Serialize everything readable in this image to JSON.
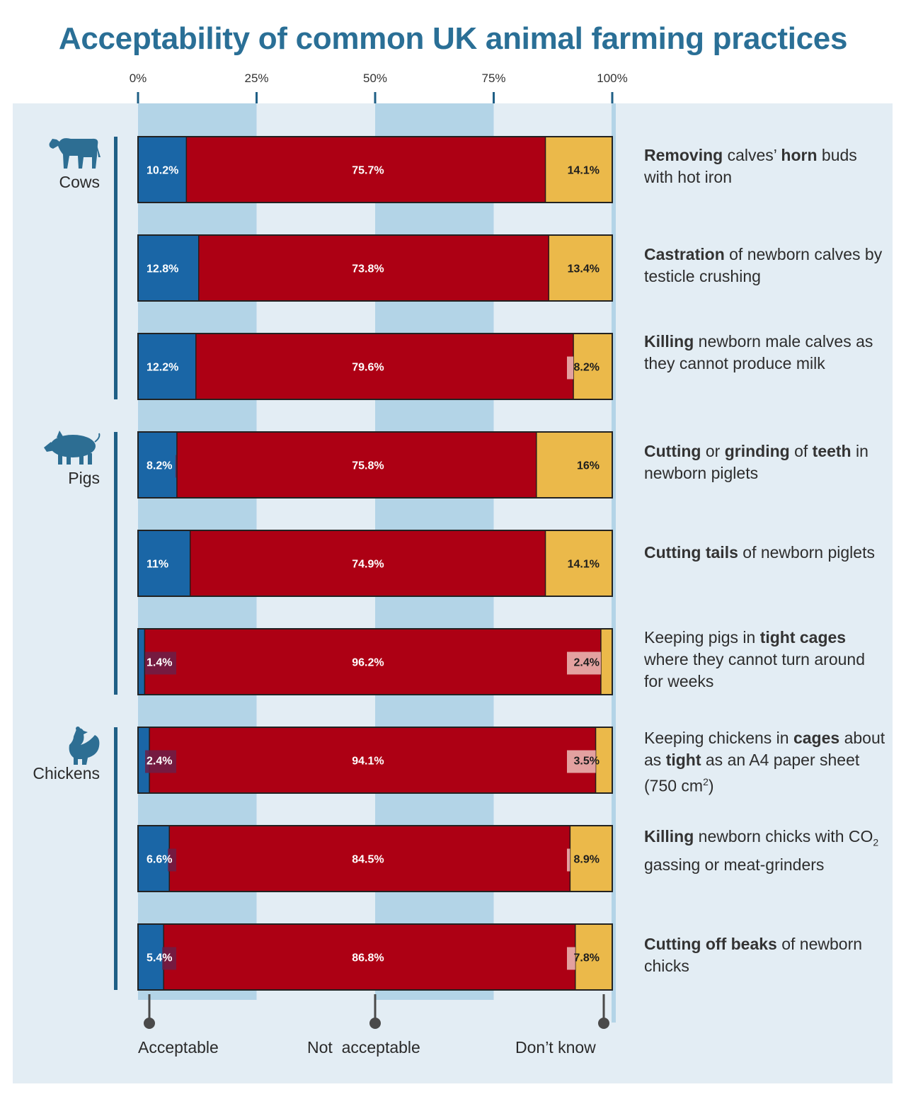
{
  "title": "Acceptability of common UK animal farming practices",
  "colors": {
    "acceptable": "#1a66a6",
    "not_acceptable": "#ad0014",
    "dont_know": "#ebb94a",
    "panel": "#e3edf4",
    "band": "#b3d4e7",
    "title": "#2a6f96",
    "group_line": "#1f5f86",
    "icon": "#2d6e93"
  },
  "groups": [
    {
      "label": "Cows",
      "icon": "cow-icon"
    },
    {
      "label": "Pigs",
      "icon": "pig-icon"
    },
    {
      "label": "Chickens",
      "icon": "chicken-icon"
    }
  ],
  "descriptions": [
    [
      {
        "t": "Removing",
        "b": true
      },
      {
        "t": " calves’ "
      },
      {
        "t": "horn",
        "b": true
      },
      {
        "t": " buds with hot iron"
      }
    ],
    [
      {
        "t": "Castration",
        "b": true
      },
      {
        "t": " of newborn calves by testicle crushing"
      }
    ],
    [
      {
        "t": "Killing",
        "b": true
      },
      {
        "t": " newborn male calves as they cannot produce milk"
      }
    ],
    [
      {
        "t": "Cutting",
        "b": true
      },
      {
        "t": " or "
      },
      {
        "t": "grinding",
        "b": true
      },
      {
        "t": " of "
      },
      {
        "t": "teeth",
        "b": true
      },
      {
        "t": " in newborn piglets"
      }
    ],
    [
      {
        "t": "Cutting tails",
        "b": true
      },
      {
        "t": " of newborn piglets"
      }
    ],
    [
      {
        "t": "Keeping pigs in "
      },
      {
        "t": "tight cages",
        "b": true
      },
      {
        "t": " where they cannot turn around for weeks"
      }
    ],
    [
      {
        "t": "Keeping chickens in "
      },
      {
        "t": "cages",
        "b": true
      },
      {
        "t": " about as "
      },
      {
        "t": "tight",
        "b": true
      },
      {
        "t": " as an A4 paper sheet (750 cm"
      },
      {
        "t": "2",
        "sup": true
      },
      {
        "t": ")"
      }
    ],
    [
      {
        "t": "Killing",
        "b": true
      },
      {
        "t": " newborn chicks with CO"
      },
      {
        "t": "2",
        "sub": true
      },
      {
        "t": " gassing or meat-grinders"
      }
    ],
    [
      {
        "t": "Cutting off beaks",
        "b": true
      },
      {
        "t": " of newborn chicks"
      }
    ]
  ],
  "legend": {
    "acceptable": "Acceptable",
    "not_acceptable": "Not  acceptable",
    "dont_know": "Don’t know"
  },
  "chart_data": {
    "type": "bar",
    "orientation": "horizontal",
    "stacked": true,
    "xlim": [
      0,
      100
    ],
    "x_ticks": [
      "0%",
      "25%",
      "50%",
      "75%",
      "100%"
    ],
    "series": [
      {
        "name": "Acceptable",
        "values": [
          10.2,
          12.8,
          12.2,
          8.2,
          11,
          1.4,
          2.4,
          6.6,
          5.4
        ],
        "labels": [
          "10.2%",
          "12.8%",
          "12.2%",
          "8.2%",
          "11%",
          "1.4%",
          "2.4%",
          "6.6%",
          "5.4%"
        ]
      },
      {
        "name": "Not  acceptable",
        "values": [
          75.7,
          73.8,
          79.6,
          75.8,
          74.9,
          96.2,
          94.1,
          84.5,
          86.8
        ],
        "labels": [
          "75.7%",
          "73.8%",
          "79.6%",
          "75.8%",
          "74.9%",
          "96.2%",
          "94.1%",
          "84.5%",
          "86.8%"
        ]
      },
      {
        "name": "Don’t know",
        "values": [
          14.1,
          13.4,
          8.2,
          16,
          14.1,
          2.4,
          3.5,
          8.9,
          7.8
        ],
        "labels": [
          "14.1%",
          "13.4%",
          "8.2%",
          "16%",
          "14.1%",
          "2.4%",
          "3.5%",
          "8.9%",
          "7.8%"
        ]
      }
    ],
    "legend_position": "bottom",
    "grid": "alternating bands"
  }
}
